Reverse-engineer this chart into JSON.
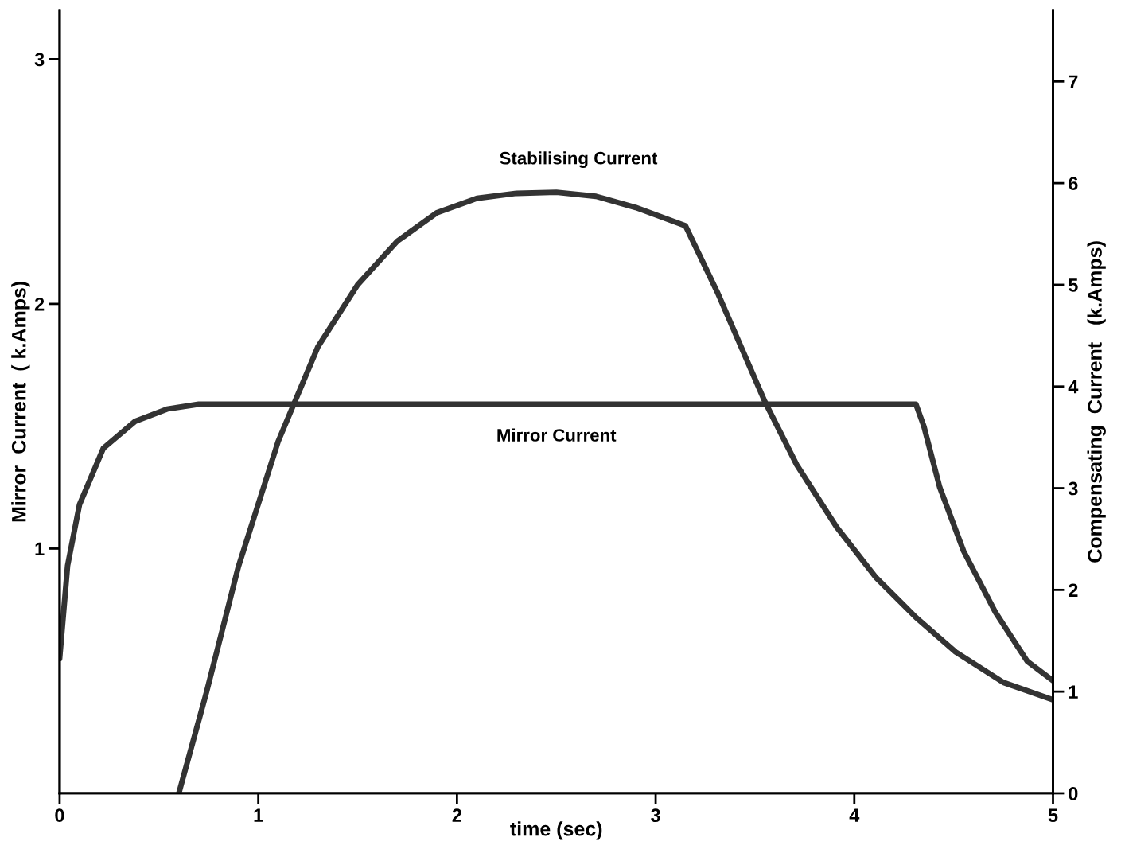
{
  "chart_data": {
    "type": "line",
    "xlabel": "time (sec)",
    "ylabel": "Mirror  Current  ( k.Amps)",
    "y2label": "Compensating  Current   (k.Amps)",
    "xlim": [
      0,
      5
    ],
    "xticks": [
      0,
      1,
      2,
      3,
      4,
      5
    ],
    "ylim": [
      0,
      3.2
    ],
    "yticks": [
      1,
      2,
      3
    ],
    "y2lim": [
      0,
      7.7
    ],
    "y2ticks": [
      0,
      1,
      2,
      3,
      4,
      5,
      6,
      7
    ],
    "grid": false,
    "legend": false,
    "marker": "none",
    "line_style": "solid",
    "series": [
      {
        "name": "Mirror Current",
        "color": "#333333",
        "x": [
          0,
          0.04,
          0.1,
          0.22,
          0.38,
          0.54,
          0.7,
          2.5,
          4.31,
          4.35,
          4.43,
          4.55,
          4.71,
          4.87,
          5.0
        ],
        "values": [
          0.55,
          0.93,
          1.18,
          1.41,
          1.52,
          1.57,
          1.59,
          1.59,
          1.59,
          1.5,
          1.25,
          0.99,
          0.74,
          0.54,
          0.46
        ]
      },
      {
        "name": "Stabilising Current",
        "color": "#333333",
        "axis": "y2",
        "x": [
          0.6,
          0.74,
          0.9,
          1.1,
          1.3,
          1.5,
          1.7,
          1.9,
          2.1,
          2.3,
          2.5,
          2.7,
          2.9,
          3.15,
          3.31,
          3.55,
          3.71,
          3.91,
          4.11,
          4.31,
          4.51,
          4.75,
          5.0
        ],
        "values": [
          0,
          1.0,
          2.23,
          3.46,
          4.39,
          5.0,
          5.43,
          5.71,
          5.85,
          5.9,
          5.91,
          5.87,
          5.76,
          5.58,
          4.93,
          3.85,
          3.23,
          2.62,
          2.12,
          1.73,
          1.39,
          1.09,
          0.92
        ]
      }
    ]
  }
}
